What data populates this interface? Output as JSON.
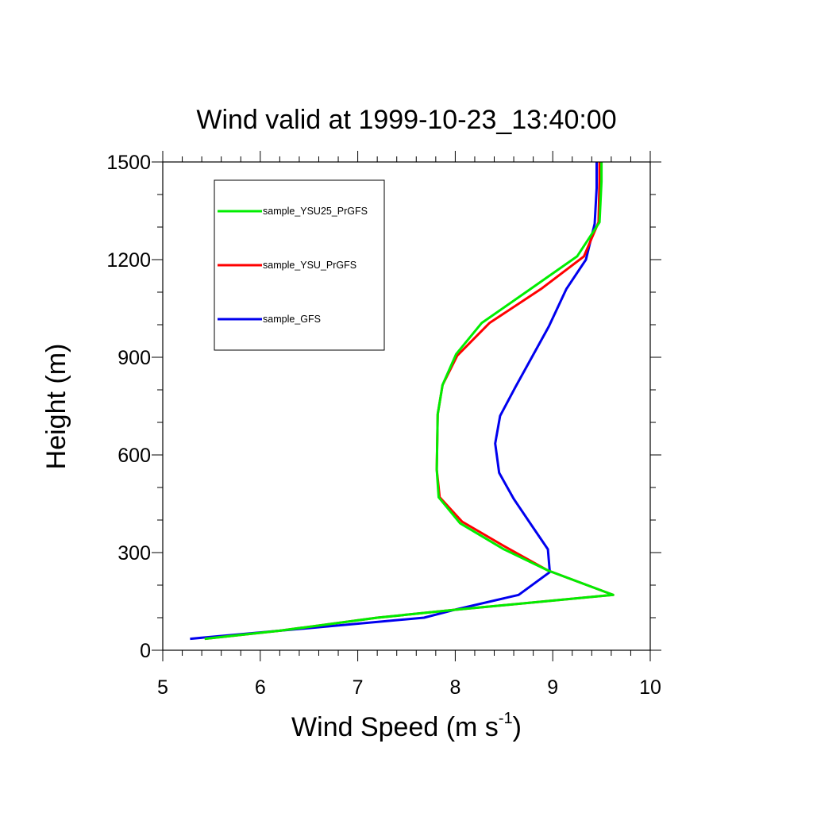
{
  "chart_data": {
    "type": "line",
    "title": "Wind valid at 1999-10-23_13:40:00",
    "xlabel": "Wind Speed (m s",
    "xlabel_sup": "-1",
    "xlabel_tail": ")",
    "ylabel": "Height (m)",
    "xlim": [
      5,
      10
    ],
    "ylim": [
      0,
      1500
    ],
    "xticks": [
      5,
      6,
      7,
      8,
      9,
      10
    ],
    "yticks": [
      0,
      300,
      600,
      900,
      1200,
      1500
    ],
    "grid": false,
    "legend_position": "top-left",
    "series": [
      {
        "name": "sample_YSU25_PrGFS",
        "color": "#00ee00",
        "x": [
          5.43,
          6.2,
          7.2,
          8.02,
          9.62,
          8.95,
          8.5,
          8.05,
          7.83,
          7.81,
          7.82,
          7.87,
          8.01,
          8.27,
          8.75,
          9.25,
          9.48,
          9.5,
          9.5
        ],
        "y": [
          35,
          60,
          100,
          125,
          170,
          245,
          310,
          390,
          470,
          555,
          725,
          815,
          910,
          1005,
          1105,
          1210,
          1315,
          1440,
          1500
        ]
      },
      {
        "name": "sample_YSU_PrGFS",
        "color": "#ff0000",
        "x": [
          5.43,
          6.2,
          7.2,
          8.02,
          9.62,
          8.95,
          8.5,
          8.07,
          7.84,
          7.81,
          7.82,
          7.87,
          8.02,
          8.35,
          8.88,
          9.32,
          9.47,
          9.48,
          9.48
        ],
        "y": [
          35,
          60,
          100,
          125,
          170,
          245,
          320,
          395,
          470,
          555,
          725,
          815,
          905,
          1005,
          1110,
          1210,
          1315,
          1440,
          1500
        ]
      },
      {
        "name": "sample_GFS",
        "color": "#0000ee",
        "x": [
          5.28,
          6.2,
          7.68,
          8.0,
          8.65,
          8.97,
          8.95,
          8.78,
          8.6,
          8.45,
          8.41,
          8.46,
          8.62,
          8.96,
          9.14,
          9.34,
          9.43,
          9.45,
          9.45
        ],
        "y": [
          35,
          60,
          100,
          125,
          170,
          240,
          310,
          385,
          465,
          545,
          635,
          720,
          810,
          995,
          1110,
          1200,
          1310,
          1420,
          1500
        ]
      }
    ]
  }
}
